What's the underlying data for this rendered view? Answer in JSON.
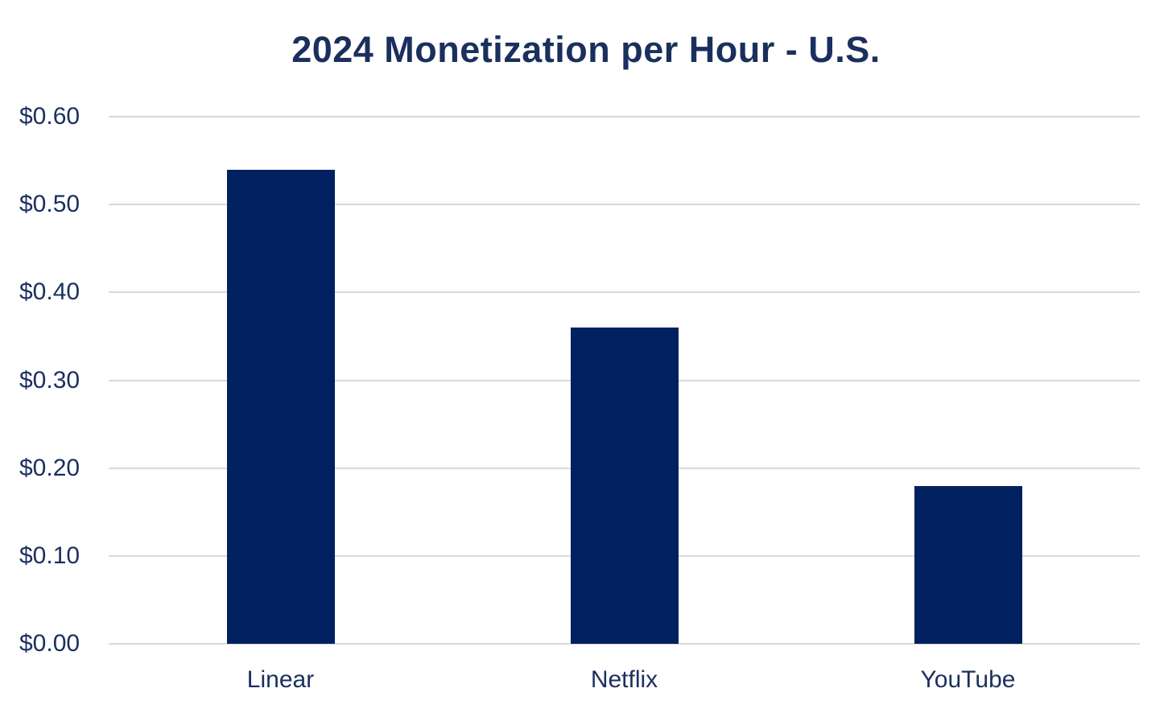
{
  "chart_data": {
    "type": "bar",
    "title": "2024 Monetization per Hour - U.S.",
    "categories": [
      "Linear",
      "Netflix",
      "YouTube"
    ],
    "values": [
      0.54,
      0.36,
      0.18
    ],
    "value_unit": "USD per hour",
    "ylim": [
      0,
      0.6
    ],
    "yticks": [
      {
        "value": 0.6,
        "label": "$0.60"
      },
      {
        "value": 0.5,
        "label": "$0.50"
      },
      {
        "value": 0.4,
        "label": "$0.40"
      },
      {
        "value": 0.3,
        "label": "$0.30"
      },
      {
        "value": 0.2,
        "label": "$0.20"
      },
      {
        "value": 0.1,
        "label": "$0.10"
      },
      {
        "value": 0.0,
        "label": "$0.00"
      }
    ],
    "grid": true,
    "legend_position": "none",
    "colors": {
      "bar": "#002060",
      "title_text": "#1b2f5e",
      "tick_text": "#1b2f5e",
      "gridline": "#d9d9d9",
      "background": "#ffffff"
    }
  }
}
